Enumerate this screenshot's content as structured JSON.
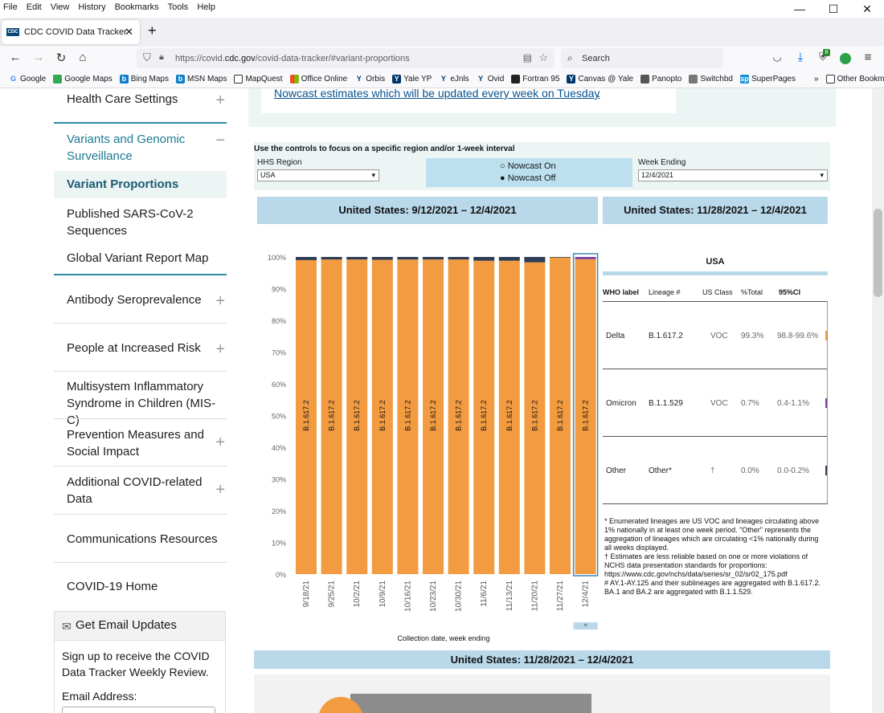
{
  "menu": [
    "File",
    "Edit",
    "View",
    "History",
    "Bookmarks",
    "Tools",
    "Help"
  ],
  "tab": {
    "title": "CDC COVID Data Tracker",
    "fav": "CDC"
  },
  "nav": {
    "url_prefix": "https://covid.",
    "url_domain": "cdc.gov",
    "url_rest": "/covid-data-tracker/#variant-proportions",
    "search_placeholder": "Search",
    "badge": "8"
  },
  "bookmarks": [
    "Google",
    "Google Maps",
    "Bing Maps",
    "MSN Maps",
    "MapQuest",
    "Office Online",
    "Orbis",
    "Yale YP",
    "eJnls",
    "Ovid",
    "Fortran 95",
    "Canvas @ Yale",
    "Panopto",
    "Switchbd",
    "SuperPages",
    "Other Bookmarks"
  ],
  "sidebar": {
    "health_care": "Health Care Settings",
    "variants": "Variants and Genomic Surveillance",
    "variant_prop": "Variant Proportions",
    "published": "Published SARS-CoV-2 Sequences",
    "global": "Global Variant Report Map",
    "antibody": "Antibody Seroprevalence",
    "people": "People at Increased Risk",
    "mis": "Multisystem Inflammatory Syndrome in Children (MIS-C)",
    "prevention": "Prevention Measures and Social Impact",
    "additional": "Additional COVID-related Data",
    "comms": "Communications Resources",
    "home": "COVID-19 Home",
    "email_title": "Get Email Updates",
    "email_text": "Sign up to receive the COVID Data Tracker Weekly Review.",
    "email_label": "Email Address:"
  },
  "panel_link": "Nowcast estimates which will be updated every week on Tuesday",
  "controls": {
    "heading": "Use the controls to focus on a specific region and/or 1-week interval",
    "region_label": "HHS Region",
    "region_value": "USA",
    "nowcast_on": "Nowcast On",
    "nowcast_off": "Nowcast Off",
    "week_label": "Week Ending",
    "week_value": "12/4/2021"
  },
  "headers": {
    "left": "United States: 9/12/2021 – 12/4/2021",
    "right": "United States: 11/28/2021 – 12/4/2021",
    "bottom": "United States: 11/28/2021 – 12/4/2021"
  },
  "chart_data": {
    "type": "bar",
    "stacked": true,
    "categories": [
      "9/18/21",
      "9/25/21",
      "10/2/21",
      "10/9/21",
      "10/16/21",
      "10/23/21",
      "10/30/21",
      "11/6/21",
      "11/13/21",
      "11/20/21",
      "11/27/21",
      "12/4/21"
    ],
    "yticks": [
      "0%",
      "10%",
      "20%",
      "30%",
      "40%",
      "50%",
      "60%",
      "70%",
      "80%",
      "90%",
      "100%"
    ],
    "ylim": [
      0,
      100
    ],
    "xlabel": "Collection date, week ending",
    "bar_label": "B.1.617.2",
    "series": [
      {
        "name": "B.1.617.2",
        "color": "#f29b41",
        "values": [
          99.0,
          99.2,
          99.2,
          99.1,
          99.2,
          99.2,
          99.2,
          98.8,
          98.8,
          98.3,
          99.8,
          99.3
        ]
      },
      {
        "name": "B.1.1.529",
        "color": "#7b3fa0",
        "values": [
          0,
          0,
          0,
          0,
          0,
          0,
          0,
          0,
          0,
          0,
          0,
          0.7
        ]
      },
      {
        "name": "Other",
        "color": "#2f3e55",
        "values": [
          1.0,
          0.8,
          0.8,
          0.9,
          0.8,
          0.8,
          0.8,
          1.2,
          1.2,
          1.7,
          0.2,
          0.0
        ]
      }
    ],
    "highlight_index": 11,
    "nav_glyph": "^"
  },
  "table": {
    "title": "USA",
    "columns": [
      "WHO label",
      "Lineage #",
      "US Class",
      "%Total",
      "95%CI"
    ],
    "rows": [
      {
        "who": "Delta",
        "lineage": "B.1.617.2",
        "class": "VOC",
        "total": "99.3%",
        "ci": "98.8-99.6%",
        "color": "#f29b41"
      },
      {
        "who": "Omicron",
        "lineage": "B.1.1.529",
        "class": "VOC",
        "total": "0.7%",
        "ci": "0.4-1.1%",
        "color": "#7b3fa0"
      },
      {
        "who": "Other",
        "lineage": "Other*",
        "class": "†",
        "total": "0.0%",
        "ci": "0.0-0.2%",
        "color": "#2f3e55"
      }
    ]
  },
  "footnotes": [
    "*      Enumerated lineages are US VOC and lineages circulating above 1% nationally in at least one week period. \"Other\" represents the aggregation of lineages which are circulating <1% nationally during all weeks displayed.",
    "†      Estimates are less reliable based on one or more violations of NCHS data presentation standards for proportions: https://www.cdc.gov/nchs/data/series/sr_02/sr02_175.pdf",
    "#      AY.1-AY.125 and their sublineages are aggregated with B.1.617.2. BA.1 and BA.2 are aggregated with B.1.1.529."
  ]
}
